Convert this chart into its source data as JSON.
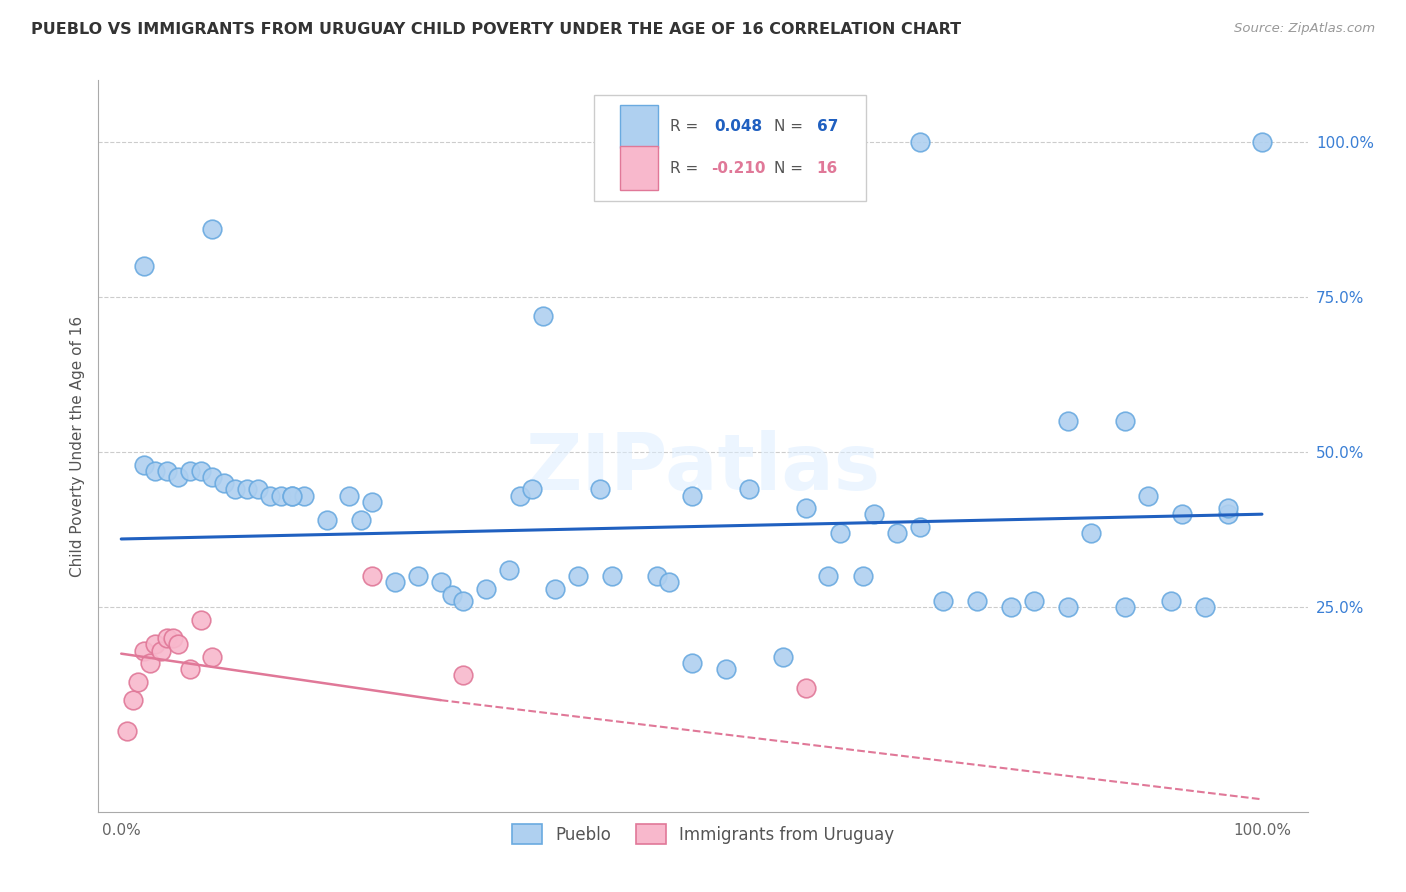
{
  "title": "PUEBLO VS IMMIGRANTS FROM URUGUAY CHILD POVERTY UNDER THE AGE OF 16 CORRELATION CHART",
  "source": "Source: ZipAtlas.com",
  "ylabel": "Child Poverty Under the Age of 16",
  "watermark": "ZIPatlas",
  "pueblo_R": 0.048,
  "pueblo_N": 67,
  "uruguay_R": -0.21,
  "uruguay_N": 16,
  "pueblo_color": "#afd0f0",
  "pueblo_edge": "#6aaae0",
  "uruguay_color": "#f8b8cc",
  "uruguay_edge": "#e07898",
  "pueblo_line_color": "#2060c0",
  "uruguay_line_color": "#e07898",
  "background_color": "#ffffff",
  "grid_color": "#cccccc",
  "xlim": [
    -0.02,
    1.04
  ],
  "ylim": [
    -0.08,
    1.1
  ],
  "pueblo_x": [
    0.02,
    0.08,
    0.37,
    0.02,
    0.03,
    0.04,
    0.05,
    0.06,
    0.07,
    0.08,
    0.09,
    0.1,
    0.11,
    0.12,
    0.13,
    0.14,
    0.15,
    0.16,
    0.18,
    0.2,
    0.21,
    0.22,
    0.24,
    0.26,
    0.28,
    0.29,
    0.3,
    0.32,
    0.34,
    0.35,
    0.36,
    0.38,
    0.4,
    0.42,
    0.43,
    0.47,
    0.5,
    0.53,
    0.58,
    0.62,
    0.65,
    0.68,
    0.7,
    0.72,
    0.75,
    0.78,
    0.8,
    0.83,
    0.85,
    0.88,
    0.9,
    0.92,
    0.95,
    0.97,
    1.0,
    0.6,
    0.63,
    0.66,
    0.7,
    0.83,
    0.88,
    0.93,
    0.97,
    0.55,
    0.15,
    0.48,
    0.5
  ],
  "pueblo_y": [
    0.8,
    0.86,
    0.72,
    0.48,
    0.47,
    0.47,
    0.46,
    0.47,
    0.47,
    0.46,
    0.45,
    0.44,
    0.44,
    0.44,
    0.43,
    0.43,
    0.43,
    0.43,
    0.39,
    0.43,
    0.39,
    0.42,
    0.29,
    0.3,
    0.29,
    0.27,
    0.26,
    0.28,
    0.31,
    0.43,
    0.44,
    0.28,
    0.3,
    0.44,
    0.3,
    0.3,
    0.16,
    0.15,
    0.17,
    0.3,
    0.3,
    0.37,
    0.38,
    0.26,
    0.26,
    0.25,
    0.26,
    0.25,
    0.37,
    0.25,
    0.43,
    0.26,
    0.25,
    0.4,
    1.0,
    0.41,
    0.37,
    0.4,
    1.0,
    0.55,
    0.55,
    0.4,
    0.41,
    0.44,
    0.43,
    0.29,
    0.43
  ],
  "uruguay_x": [
    0.005,
    0.01,
    0.015,
    0.02,
    0.025,
    0.03,
    0.035,
    0.04,
    0.045,
    0.05,
    0.06,
    0.07,
    0.08,
    0.22,
    0.3,
    0.6
  ],
  "uruguay_y": [
    0.05,
    0.1,
    0.13,
    0.18,
    0.16,
    0.19,
    0.18,
    0.2,
    0.2,
    0.19,
    0.15,
    0.23,
    0.17,
    0.3,
    0.14,
    0.12
  ],
  "pueblo_line": [
    0.36,
    0.4
  ],
  "uruguay_line": [
    0.175,
    0.1
  ],
  "uruguay_dash_line": [
    0.175,
    -0.06
  ]
}
